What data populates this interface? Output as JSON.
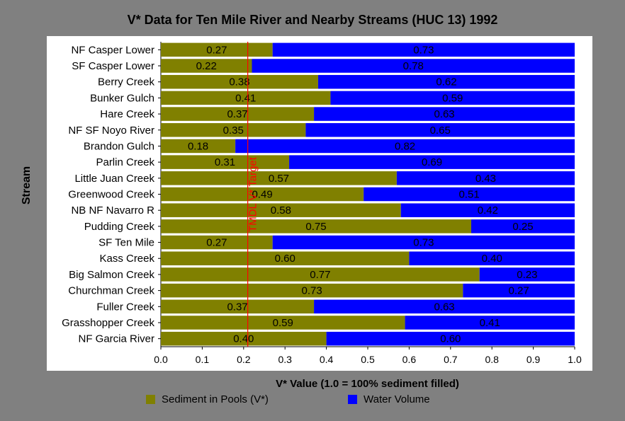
{
  "colors": {
    "sediment": "#808000",
    "water": "#0000ff",
    "target": "#ff0000"
  },
  "chart_data": {
    "type": "bar",
    "orientation": "horizontal",
    "stacked": true,
    "title": "V* Data for Ten Mile River and Nearby Streams (HUC 13) 1992",
    "xlabel": "V* Value (1.0 = 100% sediment filled)",
    "ylabel": "Stream",
    "xlim": [
      0,
      1
    ],
    "xticks": [
      "0.0",
      "0.1",
      "0.2",
      "0.3",
      "0.4",
      "0.5",
      "0.6",
      "0.7",
      "0.8",
      "0.9",
      "1.0"
    ],
    "legend_position": "bottom",
    "categories": [
      "NF Casper Lower",
      "SF Casper Lower",
      "Berry Creek",
      "Bunker Gulch",
      "Hare Creek",
      "NF SF Noyo River",
      "Brandon Gulch",
      "Parlin Creek",
      "Little Juan Creek",
      "Greenwood Creek",
      "NB NF Navarro R",
      "Pudding Creek",
      "SF Ten Mile",
      "Kass Creek",
      "Big Salmon Creek",
      "Churchman Creek",
      "Fuller Creek",
      "Grasshopper Creek",
      "NF Garcia River"
    ],
    "series": [
      {
        "name": "Sediment in Pools (V*)",
        "values": [
          0.27,
          0.22,
          0.38,
          0.41,
          0.37,
          0.35,
          0.18,
          0.31,
          0.57,
          0.49,
          0.58,
          0.75,
          0.27,
          0.6,
          0.77,
          0.73,
          0.37,
          0.59,
          0.4
        ],
        "labels": [
          "0.27",
          "0.22",
          "0.38",
          "0.41",
          "0.37",
          "0.35",
          "0.18",
          "0.31",
          "0.57",
          "0.49",
          "0.58",
          "0.75",
          "0.27",
          "0.60",
          "0.77",
          "0.73",
          "0.37",
          "0.59",
          "0.40"
        ]
      },
      {
        "name": "Water Volume",
        "values": [
          0.73,
          0.78,
          0.62,
          0.59,
          0.63,
          0.65,
          0.82,
          0.69,
          0.43,
          0.51,
          0.42,
          0.25,
          0.73,
          0.4,
          0.23,
          0.27,
          0.63,
          0.41,
          0.6
        ],
        "labels": [
          "0.73",
          "0.78",
          "0.62",
          "0.59",
          "0.63",
          "0.65",
          "0.82",
          "0.69",
          "0.43",
          "0.51",
          "0.42",
          "0.25",
          "0.73",
          "0.40",
          "0.23",
          "0.27",
          "0.63",
          "0.41",
          "0.60"
        ]
      }
    ],
    "annotation": {
      "text": "TMDL V* Target",
      "x": 0.21
    }
  }
}
